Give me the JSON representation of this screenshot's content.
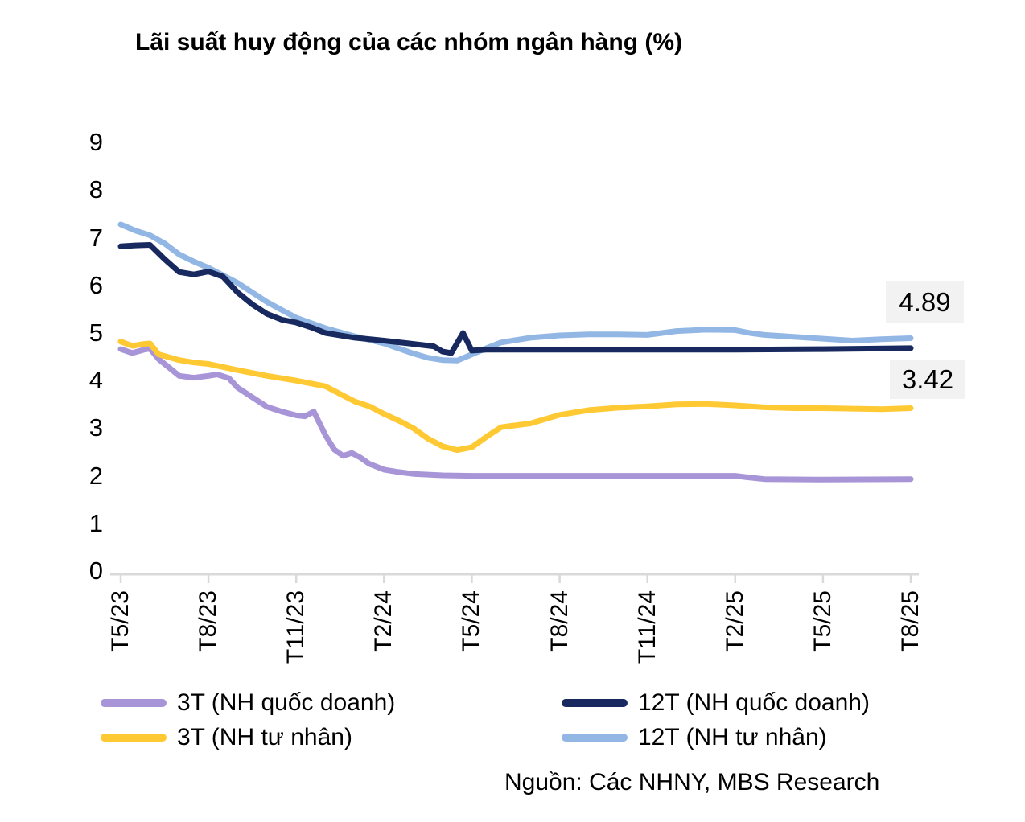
{
  "title": "Lãi suất huy động của các nhóm ngân hàng (%)",
  "source": "Nguồn: Các NHNY, MBS Research",
  "colors": {
    "purple": "#A795D8",
    "navy": "#17295F",
    "yellow": "#FFC933",
    "light_blue": "#92B7E4",
    "axis": "#D9D9D9",
    "annotation_bg": "#F2F2F2",
    "text": "#000000"
  },
  "chart_data": {
    "type": "line",
    "title": "Lãi suất huy động của các nhóm ngân hàng (%)",
    "xlabel": "",
    "ylabel": "",
    "ylim": [
      0,
      9
    ],
    "grid": "off",
    "legend_position": "bottom",
    "y_ticks": [
      "9",
      "8",
      "7",
      "6",
      "5",
      "4",
      "3",
      "2",
      "1",
      "0"
    ],
    "x_tick_labels": [
      "T5/23",
      "T8/23",
      "T11/23",
      "T2/24",
      "T5/24",
      "T8/24",
      "T11/24",
      "T2/25",
      "T5/25",
      "T8/25"
    ],
    "x_note": "x = months, 0 = T5/23 … 27 = T8/25",
    "annotations": [
      {
        "text": "4.89",
        "series": "12T (NH tư nhân)"
      },
      {
        "text": "3.42",
        "series": "3T (NH tư nhân)"
      }
    ],
    "series": [
      {
        "name": "3T (NH quốc doanh)",
        "color": "#A795D8",
        "points": [
          [
            0,
            4.66
          ],
          [
            0.4,
            4.58
          ],
          [
            0.8,
            4.65
          ],
          [
            1,
            4.67
          ],
          [
            1.3,
            4.45
          ],
          [
            1.7,
            4.25
          ],
          [
            2,
            4.1
          ],
          [
            2.5,
            4.06
          ],
          [
            3,
            4.1
          ],
          [
            3.3,
            4.13
          ],
          [
            3.7,
            4.05
          ],
          [
            4,
            3.85
          ],
          [
            4.5,
            3.65
          ],
          [
            5,
            3.45
          ],
          [
            5.5,
            3.35
          ],
          [
            6,
            3.27
          ],
          [
            6.3,
            3.25
          ],
          [
            6.6,
            3.35
          ],
          [
            7,
            2.85
          ],
          [
            7.3,
            2.55
          ],
          [
            7.6,
            2.42
          ],
          [
            7.9,
            2.48
          ],
          [
            8.2,
            2.38
          ],
          [
            8.5,
            2.25
          ],
          [
            9,
            2.13
          ],
          [
            9.5,
            2.08
          ],
          [
            10,
            2.04
          ],
          [
            11,
            2.01
          ],
          [
            12,
            2.0
          ],
          [
            15,
            2.0
          ],
          [
            18,
            2.0
          ],
          [
            21,
            2.0
          ],
          [
            21.4,
            1.97
          ],
          [
            22,
            1.93
          ],
          [
            24,
            1.92
          ],
          [
            27,
            1.93
          ]
        ]
      },
      {
        "name": "12T (NH quốc doanh)",
        "color": "#17295F",
        "points": [
          [
            0,
            6.82
          ],
          [
            0.5,
            6.84
          ],
          [
            1,
            6.85
          ],
          [
            1.5,
            6.55
          ],
          [
            2,
            6.28
          ],
          [
            2.5,
            6.23
          ],
          [
            3,
            6.29
          ],
          [
            3.5,
            6.18
          ],
          [
            4,
            5.85
          ],
          [
            4.5,
            5.6
          ],
          [
            5,
            5.4
          ],
          [
            5.5,
            5.28
          ],
          [
            6,
            5.22
          ],
          [
            6.5,
            5.12
          ],
          [
            7,
            5.0
          ],
          [
            8,
            4.9
          ],
          [
            9,
            4.84
          ],
          [
            10,
            4.77
          ],
          [
            10.7,
            4.72
          ],
          [
            11,
            4.61
          ],
          [
            11.3,
            4.58
          ],
          [
            11.7,
            5.0
          ],
          [
            12,
            4.63
          ],
          [
            12.5,
            4.65
          ],
          [
            13,
            4.65
          ],
          [
            15,
            4.65
          ],
          [
            18,
            4.65
          ],
          [
            21,
            4.65
          ],
          [
            24,
            4.66
          ],
          [
            27,
            4.68
          ]
        ]
      },
      {
        "name": "3T (NH tư nhân)",
        "color": "#FFC933",
        "points": [
          [
            0,
            4.82
          ],
          [
            0.4,
            4.73
          ],
          [
            0.8,
            4.77
          ],
          [
            1,
            4.78
          ],
          [
            1.3,
            4.55
          ],
          [
            1.6,
            4.5
          ],
          [
            2,
            4.43
          ],
          [
            2.5,
            4.38
          ],
          [
            3,
            4.35
          ],
          [
            4,
            4.22
          ],
          [
            5,
            4.1
          ],
          [
            6,
            4.0
          ],
          [
            7,
            3.88
          ],
          [
            7.5,
            3.72
          ],
          [
            8,
            3.56
          ],
          [
            8.5,
            3.46
          ],
          [
            9,
            3.3
          ],
          [
            9.5,
            3.16
          ],
          [
            10,
            3.0
          ],
          [
            10.5,
            2.78
          ],
          [
            11,
            2.62
          ],
          [
            11.5,
            2.54
          ],
          [
            12,
            2.6
          ],
          [
            12.5,
            2.82
          ],
          [
            13,
            3.02
          ],
          [
            13.5,
            3.06
          ],
          [
            14,
            3.1
          ],
          [
            15,
            3.28
          ],
          [
            16,
            3.38
          ],
          [
            17,
            3.43
          ],
          [
            18,
            3.46
          ],
          [
            19,
            3.5
          ],
          [
            20,
            3.51
          ],
          [
            21,
            3.48
          ],
          [
            22,
            3.44
          ],
          [
            23,
            3.42
          ],
          [
            24,
            3.42
          ],
          [
            25,
            3.41
          ],
          [
            26,
            3.4
          ],
          [
            27,
            3.42
          ]
        ]
      },
      {
        "name": "12T (NH tư nhân)",
        "color": "#92B7E4",
        "points": [
          [
            0,
            7.28
          ],
          [
            0.5,
            7.15
          ],
          [
            1,
            7.05
          ],
          [
            1.5,
            6.88
          ],
          [
            2,
            6.65
          ],
          [
            2.5,
            6.5
          ],
          [
            3,
            6.37
          ],
          [
            4,
            6.05
          ],
          [
            5,
            5.65
          ],
          [
            6,
            5.32
          ],
          [
            7,
            5.1
          ],
          [
            8,
            4.93
          ],
          [
            9,
            4.78
          ],
          [
            10,
            4.57
          ],
          [
            10.5,
            4.48
          ],
          [
            11,
            4.43
          ],
          [
            11.5,
            4.42
          ],
          [
            12,
            4.55
          ],
          [
            12.5,
            4.68
          ],
          [
            13,
            4.8
          ],
          [
            14,
            4.9
          ],
          [
            15,
            4.95
          ],
          [
            16,
            4.97
          ],
          [
            17,
            4.97
          ],
          [
            18,
            4.96
          ],
          [
            19,
            5.04
          ],
          [
            20,
            5.07
          ],
          [
            21,
            5.06
          ],
          [
            21.5,
            5.0
          ],
          [
            22,
            4.96
          ],
          [
            23,
            4.92
          ],
          [
            24,
            4.88
          ],
          [
            25,
            4.84
          ],
          [
            26,
            4.87
          ],
          [
            27,
            4.89
          ]
        ]
      }
    ]
  }
}
